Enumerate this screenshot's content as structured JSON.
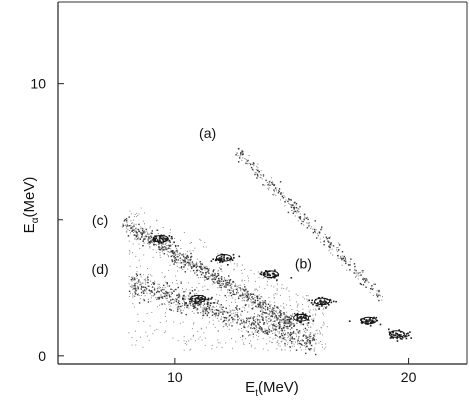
{
  "chart_data": {
    "type": "scatter",
    "title": "",
    "xlabel": "E_t(MeV)",
    "ylabel": "E_α (MeV)",
    "xlim": [
      5.0,
      22.5
    ],
    "ylim": [
      -0.3,
      13.0
    ],
    "x_ticks": [
      {
        "value": 10,
        "label": "10"
      },
      {
        "value": 20,
        "label": "20"
      }
    ],
    "y_ticks": [
      {
        "value": 0,
        "label": "0"
      },
      {
        "value": 10,
        "label": "10"
      }
    ],
    "y_minor_ticks": [
      5
    ],
    "grid": false,
    "legend": "none",
    "axis_label_parts": {
      "x": {
        "base": "E",
        "sub": "t",
        "unit": "(MeV)"
      },
      "y": {
        "base": "E",
        "sub": "α",
        "unit": "(MeV)"
      }
    },
    "series": [
      {
        "annotation": "(a)",
        "label_at": [
          11.4,
          8.0
        ],
        "line": [
          [
            12.6,
            7.6
          ],
          [
            18.8,
            2.2
          ]
        ],
        "spread": 0.12,
        "points": 320,
        "clusters": []
      },
      {
        "annotation": "(c)",
        "label_at": [
          6.8,
          4.8
        ],
        "line": [
          [
            7.8,
            4.9
          ],
          [
            15.0,
            1.2
          ]
        ],
        "spread": 0.15,
        "points": 850,
        "clusters": [
          [
            9.4,
            4.3
          ],
          [
            12.1,
            3.6
          ],
          [
            14.1,
            3.0
          ],
          [
            16.3,
            2.0
          ],
          [
            18.3,
            1.3
          ],
          [
            19.5,
            0.8
          ]
        ]
      },
      {
        "annotation": "(d)",
        "label_at": [
          6.8,
          3.0
        ],
        "line": [
          [
            8.0,
            2.7
          ],
          [
            16.0,
            0.5
          ]
        ],
        "spread": 0.22,
        "points": 750,
        "clusters": [
          [
            11.0,
            2.1
          ],
          [
            15.4,
            1.4
          ]
        ]
      },
      {
        "annotation": "(b)",
        "label_at": [
          15.5,
          3.2
        ],
        "line": [],
        "spread": 0,
        "points": 0,
        "clusters": []
      }
    ],
    "background_noise_points": 900
  }
}
